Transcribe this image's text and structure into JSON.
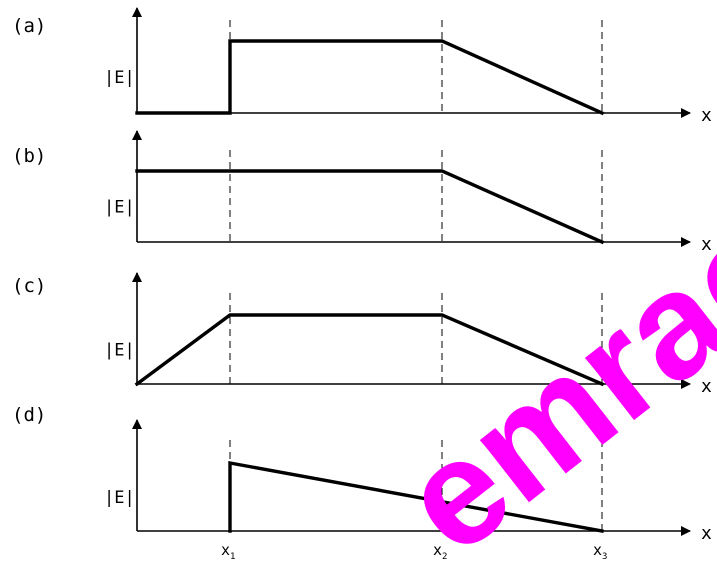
{
  "chart_data": [
    {
      "type": "line",
      "panel_label": "(a)",
      "ylabel": "|E|",
      "xlabel": "x",
      "x": [
        0,
        1,
        1,
        2,
        3
      ],
      "y": [
        0,
        0,
        1,
        1,
        0
      ],
      "ylim": [
        0,
        1
      ],
      "grid": false
    },
    {
      "type": "line",
      "panel_label": "(b)",
      "ylabel": "|E|",
      "xlabel": "x",
      "x": [
        0,
        2,
        3
      ],
      "y": [
        1,
        1,
        0
      ],
      "ylim": [
        0,
        1
      ],
      "grid": false
    },
    {
      "type": "line",
      "panel_label": "(c)",
      "ylabel": "|E|",
      "xlabel": "x",
      "x": [
        0,
        1,
        2,
        3
      ],
      "y": [
        0,
        1,
        1,
        0
      ],
      "ylim": [
        0,
        1
      ],
      "grid": false
    },
    {
      "type": "line",
      "panel_label": "(d)",
      "ylabel": "|E|",
      "xlabel": "x",
      "x": [
        1,
        1,
        3
      ],
      "y": [
        0,
        1,
        0
      ],
      "ylim": [
        0,
        1
      ],
      "grid": false,
      "xticks": [
        {
          "value": 1,
          "base": "x",
          "sub": "1"
        },
        {
          "value": 2,
          "base": "x",
          "sub": "2"
        },
        {
          "value": 3,
          "base": "x",
          "sub": "3"
        }
      ]
    }
  ],
  "guides_x": [
    1,
    2,
    3
  ],
  "watermark": "emrao"
}
